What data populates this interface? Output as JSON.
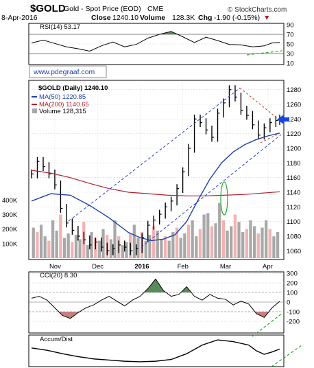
{
  "header": {
    "symbol": "$GOLD",
    "name": "Gold - Spot Price (EOD)",
    "exchange": "CME",
    "date": "8-Apr-2016",
    "close_label": "Close",
    "close_value": "1240.10",
    "volume_label": "Volume",
    "volume_value": "128.3K",
    "chg_label": "Chg",
    "chg_value": "-1.90 (-0.15%)",
    "chg_arrow": "▼",
    "watermark": "© StockCharts.com",
    "url_box": "www.pdegraaf.com"
  },
  "colors": {
    "price_bar": "#000000",
    "ma50": "#1f3fa8",
    "ma200": "#b0202a",
    "volume_up": "#a8a8a8",
    "volume_down": "#f2b2b2",
    "indicator_fill_pos": "#5a8a5a",
    "indicator_fill_neg": "#c47f7f",
    "trend_blue": "#2b3fd6",
    "trend_red": "#c0392b",
    "trend_green": "#2aa52a",
    "arrow": "#1646e0"
  },
  "chart_data": [
    {
      "type": "line",
      "panel": "RSI",
      "legend": "RSI(14) 53.17",
      "ylim": [
        10,
        90
      ],
      "yticks": [
        90,
        70,
        50,
        30,
        10
      ],
      "overbought": 70,
      "oversold": 30,
      "x": [
        0,
        6,
        12,
        18,
        24,
        30,
        36,
        42,
        48,
        54,
        60,
        66,
        72,
        78,
        84,
        90,
        96,
        102,
        108,
        114,
        120,
        124,
        128
      ],
      "values": [
        52,
        58,
        51,
        44,
        40,
        35,
        46,
        54,
        44,
        49,
        62,
        70,
        76,
        65,
        53,
        64,
        57,
        49,
        48,
        44,
        46,
        52,
        53.17
      ]
    },
    {
      "type": "line",
      "panel": "Price",
      "legend_price": "$GOLD (Daily) 1240.10",
      "legend_ma50": "MA(50) 1220.85",
      "legend_ma200": "MA(200) 1140.65",
      "legend_volume": "Volume 128,315",
      "ylim": [
        1050,
        1290
      ],
      "yticks": [
        1280,
        1260,
        1240,
        1220,
        1200,
        1180,
        1160,
        1140,
        1120,
        1100,
        1080,
        1060
      ],
      "volume_ticks": [
        "400K",
        "300K",
        "200K",
        "100K"
      ],
      "xtick_labels": [
        "Nov",
        "Dec",
        "2016",
        "Feb",
        "Mar",
        "Apr"
      ],
      "xtick_positions": [
        12,
        34,
        56,
        78,
        100,
        122
      ],
      "price_close": {
        "x": [
          0,
          3,
          6,
          9,
          12,
          15,
          18,
          21,
          24,
          27,
          30,
          33,
          36,
          39,
          42,
          45,
          48,
          51,
          54,
          57,
          60,
          63,
          66,
          69,
          72,
          75,
          78,
          81,
          84,
          87,
          90,
          93,
          96,
          99,
          102,
          105,
          108,
          111,
          114,
          117,
          120,
          123,
          126,
          128
        ],
        "values": [
          1165,
          1182,
          1175,
          1165,
          1150,
          1118,
          1098,
          1088,
          1080,
          1075,
          1068,
          1072,
          1065,
          1060,
          1063,
          1068,
          1065,
          1060,
          1063,
          1078,
          1095,
          1102,
          1110,
          1120,
          1128,
          1145,
          1168,
          1200,
          1240,
          1235,
          1225,
          1215,
          1248,
          1262,
          1280,
          1270,
          1252,
          1245,
          1232,
          1218,
          1228,
          1235,
          1238,
          1240
        ]
      },
      "ma50": {
        "x": [
          0,
          10,
          20,
          30,
          40,
          50,
          56,
          62,
          68,
          74,
          80,
          86,
          92,
          98,
          104,
          110,
          116,
          122,
          128
        ],
        "values": [
          1128,
          1138,
          1136,
          1122,
          1105,
          1085,
          1078,
          1074,
          1076,
          1082,
          1100,
          1130,
          1158,
          1180,
          1195,
          1205,
          1212,
          1217,
          1220.85
        ]
      },
      "ma200": {
        "x": [
          0,
          10,
          20,
          30,
          40,
          50,
          60,
          70,
          80,
          90,
          100,
          110,
          120,
          128
        ],
        "values": [
          1170,
          1166,
          1160,
          1152,
          1145,
          1140,
          1138,
          1136,
          1135,
          1135,
          1136,
          1137,
          1139,
          1140.65
        ]
      },
      "volume_k": [
        210,
        180,
        230,
        150,
        120,
        260,
        190,
        300,
        140,
        170,
        110,
        160,
        130,
        250,
        90,
        180,
        140,
        120,
        200,
        160,
        130,
        260,
        150,
        90,
        110,
        170,
        230,
        140,
        180,
        120,
        160,
        220,
        190,
        130,
        150,
        120,
        180,
        210,
        140,
        170,
        230,
        260,
        150,
        200,
        300,
        310,
        220,
        240,
        380,
        260,
        190,
        220,
        300,
        250,
        180,
        200,
        260,
        220,
        170,
        210,
        260,
        200,
        150,
        180
      ]
    },
    {
      "type": "area",
      "panel": "CCI",
      "legend": "CCI(20) 8.30",
      "ylim": [
        -300,
        300
      ],
      "yticks": [
        300,
        200,
        100,
        0,
        -100,
        -200
      ],
      "x": [
        0,
        4,
        8,
        12,
        16,
        20,
        24,
        28,
        32,
        36,
        40,
        44,
        48,
        52,
        56,
        60,
        64,
        68,
        72,
        76,
        80,
        84,
        88,
        92,
        96,
        100,
        104,
        108,
        112,
        116,
        120,
        124,
        128
      ],
      "values": [
        40,
        60,
        20,
        -60,
        -140,
        -170,
        -110,
        -60,
        -30,
        20,
        60,
        10,
        -40,
        20,
        60,
        140,
        240,
        120,
        60,
        80,
        160,
        60,
        20,
        80,
        40,
        30,
        -30,
        10,
        -20,
        -120,
        -160,
        -60,
        8.3
      ]
    },
    {
      "type": "line",
      "panel": "Accum/Dist",
      "legend": "Accum/Dist",
      "x": [
        0,
        8,
        16,
        24,
        32,
        40,
        48,
        56,
        64,
        72,
        80,
        88,
        96,
        104,
        112,
        116,
        120,
        124,
        128
      ],
      "values": [
        60,
        52,
        40,
        30,
        22,
        18,
        14,
        12,
        14,
        20,
        40,
        70,
        88,
        82,
        70,
        50,
        38,
        46,
        56
      ]
    }
  ]
}
